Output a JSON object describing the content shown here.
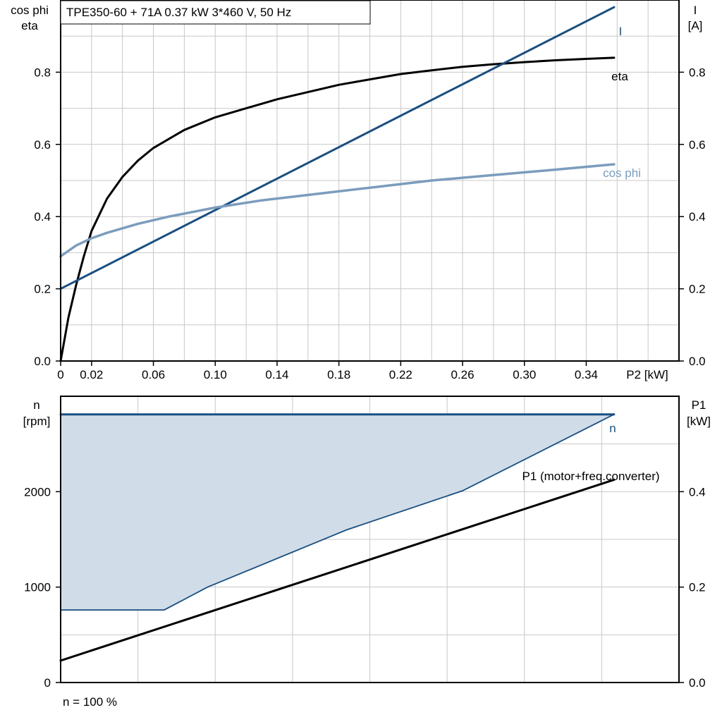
{
  "chart_data": [
    {
      "type": "line",
      "title": "TPE350-60 + 71A   0.37 kW   3*460 V, 50 Hz",
      "xlabel": "P2 [kW]",
      "ylabel_left": [
        "cos phi",
        "eta"
      ],
      "ylabel_right": [
        "I",
        "[A]"
      ],
      "xlim": [
        0,
        0.4
      ],
      "ylim_left": [
        0,
        1.0
      ],
      "ylim_right": [
        0,
        1.0
      ],
      "grid": true,
      "x_ticks": [
        "0",
        "0.02",
        "0.06",
        "0.10",
        "0.14",
        "0.18",
        "0.22",
        "0.26",
        "0.30",
        "0.34"
      ],
      "x_tick_values": [
        0,
        0.02,
        0.06,
        0.1,
        0.14,
        0.18,
        0.22,
        0.26,
        0.3,
        0.34
      ],
      "y_ticks_left": [
        "0.0",
        "0.2",
        "0.4",
        "0.6",
        "0.8"
      ],
      "y_ticks_right": [
        "0.0",
        "0.2",
        "0.4",
        "0.6",
        "0.8"
      ],
      "y_tick_values": [
        0,
        0.2,
        0.4,
        0.6,
        0.8
      ],
      "series": [
        {
          "name": "eta",
          "color": "#000000",
          "axis": "left",
          "x": [
            0,
            0.005,
            0.01,
            0.015,
            0.02,
            0.03,
            0.04,
            0.05,
            0.06,
            0.08,
            0.1,
            0.12,
            0.14,
            0.16,
            0.18,
            0.2,
            0.22,
            0.24,
            0.26,
            0.28,
            0.3,
            0.32,
            0.34,
            0.358
          ],
          "y": [
            0,
            0.12,
            0.21,
            0.29,
            0.36,
            0.45,
            0.51,
            0.555,
            0.59,
            0.64,
            0.675,
            0.7,
            0.725,
            0.745,
            0.765,
            0.78,
            0.795,
            0.805,
            0.815,
            0.822,
            0.828,
            0.833,
            0.837,
            0.84
          ]
        },
        {
          "name": "I",
          "color": "#1a4f80",
          "axis": "right",
          "x": [
            0,
            0.358
          ],
          "y": [
            0.2,
            0.98
          ]
        },
        {
          "name": "cos phi",
          "color": "#7b9cbd",
          "axis": "left",
          "x": [
            0,
            0.01,
            0.02,
            0.03,
            0.05,
            0.07,
            0.1,
            0.13,
            0.16,
            0.2,
            0.24,
            0.28,
            0.32,
            0.358
          ],
          "y": [
            0.29,
            0.32,
            0.34,
            0.355,
            0.38,
            0.4,
            0.425,
            0.445,
            0.46,
            0.48,
            0.5,
            0.515,
            0.53,
            0.545
          ]
        }
      ]
    },
    {
      "type": "area",
      "xlim": [
        0,
        0.4
      ],
      "ylabel_left": [
        "n",
        "[rpm]"
      ],
      "ylabel_right": [
        "P1",
        "[kW]"
      ],
      "ylim_left": [
        0,
        3000
      ],
      "ylim_right": [
        0,
        0.6
      ],
      "grid": true,
      "y_ticks_left": [
        "0",
        "1000",
        "2000"
      ],
      "y_tick_values_left": [
        0,
        1000,
        2000
      ],
      "y_ticks_right": [
        "0.0",
        "0.2",
        "0.4"
      ],
      "y_tick_values_right": [
        0,
        0.2,
        0.4
      ],
      "footnote": "n = 100 %",
      "series": [
        {
          "name": "n",
          "color": "#1a4f80",
          "axis": "left",
          "x": [
            0,
            0.358
          ],
          "y": [
            2810,
            2810
          ]
        },
        {
          "name": "P1 (motor+freq.converter)",
          "color": "#000000",
          "axis": "right",
          "x": [
            0,
            0.358
          ],
          "y": [
            0.046,
            0.425
          ]
        }
      ],
      "operating_range": {
        "color": "#d0dce8",
        "edge_color": "#1a4f80",
        "upper": {
          "x": [
            0,
            0.358
          ],
          "y": [
            2810,
            2810
          ]
        },
        "lower": {
          "x": [
            0,
            0.067,
            0.095,
            0.185,
            0.26,
            0.358
          ],
          "y": [
            760,
            760,
            1000,
            1600,
            2010,
            2810
          ]
        }
      }
    }
  ]
}
